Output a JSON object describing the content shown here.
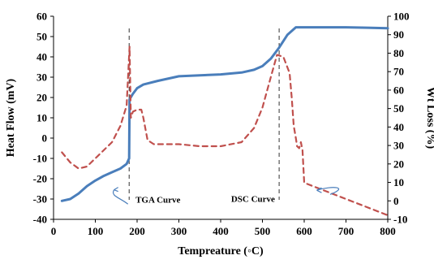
{
  "chart_data": {
    "type": "line",
    "xlabel": "Tempreature (◦C)",
    "ylabel_left": "Heat Flow (mV)",
    "ylabel_right": "Wt Loss (%)",
    "xlim": [
      0,
      800
    ],
    "ylim_left": [
      -40,
      60
    ],
    "ylim_right": [
      -10,
      100
    ],
    "x_ticks": [
      "0",
      "100",
      "200",
      "300",
      "400",
      "500",
      "600",
      "700",
      "800"
    ],
    "y_ticks_left": [
      "60",
      "50",
      "40",
      "30",
      "20",
      "10",
      "0",
      "-10",
      "-20",
      "-30",
      "-40"
    ],
    "y_ticks_right": [
      "100",
      "90",
      "80",
      "70",
      "60",
      "50",
      "40",
      "30",
      "20",
      "10",
      "0",
      "-10"
    ],
    "grid": false,
    "legend": "none",
    "series": [
      {
        "axis": "right",
        "style": "solid",
        "color": "#4a7ebb",
        "x": [
          20,
          40,
          60,
          80,
          100,
          120,
          140,
          160,
          175,
          181,
          182,
          190,
          200,
          215,
          250,
          300,
          350,
          400,
          450,
          480,
          500,
          520,
          540,
          560,
          580,
          600,
          650,
          700,
          750,
          800
        ],
        "y": [
          0,
          1,
          4,
          8,
          11,
          13.5,
          15.5,
          17.5,
          20,
          23,
          55,
          58,
          61,
          63,
          65,
          67.5,
          68,
          68.5,
          69.5,
          71,
          73,
          77,
          83,
          90,
          94,
          94,
          94,
          94,
          93.8,
          93.5
        ]
      },
      {
        "axis": "left",
        "style": "dashed",
        "color": "#c0504d",
        "x": [
          20,
          40,
          60,
          80,
          100,
          120,
          140,
          160,
          175,
          182,
          185,
          190,
          200,
          210,
          215,
          225,
          240,
          300,
          350,
          400,
          450,
          480,
          500,
          520,
          535,
          550,
          565,
          570,
          575,
          580,
          583,
          588,
          592,
          596,
          600,
          650,
          700,
          750,
          800
        ],
        "y": [
          -7,
          -12,
          -15,
          -14,
          -10,
          -6,
          -2,
          6,
          16,
          45,
          10,
          13,
          14,
          14,
          10,
          -1,
          -3,
          -3,
          -4,
          -4,
          -2,
          5,
          15,
          30,
          41,
          40,
          32,
          20,
          6,
          0,
          -4,
          -5,
          -2,
          -6,
          -22,
          -26,
          -30,
          -34,
          -38
        ]
      }
    ],
    "annotations": [
      {
        "text": "TGA Curve",
        "x": 250,
        "y": -35
      },
      {
        "text": "DSC Curve",
        "x": 530,
        "y": -45
      }
    ],
    "reference_lines_x": [
      181,
      540
    ]
  }
}
